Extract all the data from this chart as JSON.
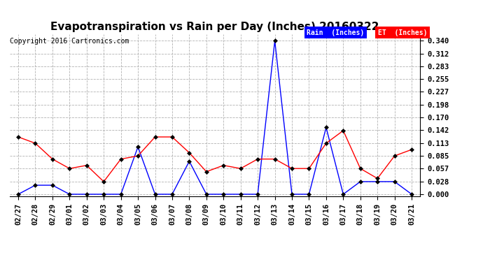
{
  "title": "Evapotranspiration vs Rain per Day (Inches) 20160322",
  "copyright": "Copyright 2016 Cartronics.com",
  "x_labels": [
    "02/27",
    "02/28",
    "02/29",
    "03/01",
    "03/02",
    "03/03",
    "03/04",
    "03/05",
    "03/06",
    "03/07",
    "03/08",
    "03/09",
    "03/10",
    "03/11",
    "03/12",
    "03/13",
    "03/14",
    "03/15",
    "03/16",
    "03/17",
    "03/18",
    "03/19",
    "03/20",
    "03/21"
  ],
  "rain_values": [
    0.0,
    0.02,
    0.02,
    0.0,
    0.0,
    0.0,
    0.0,
    0.105,
    0.0,
    0.0,
    0.073,
    0.0,
    0.0,
    0.0,
    0.0,
    0.34,
    0.0,
    0.0,
    0.148,
    0.0,
    0.028,
    0.028,
    0.028,
    0.0
  ],
  "et_values": [
    0.127,
    0.113,
    0.078,
    0.057,
    0.064,
    0.028,
    0.078,
    0.085,
    0.127,
    0.127,
    0.092,
    0.05,
    0.064,
    0.057,
    0.078,
    0.078,
    0.057,
    0.057,
    0.113,
    0.141,
    0.057,
    0.035,
    0.085,
    0.099
  ],
  "rain_color": "#0000FF",
  "et_color": "#FF0000",
  "marker_color": "#000000",
  "bg_color": "#FFFFFF",
  "grid_color": "#AAAAAA",
  "y_ticks": [
    0.0,
    0.028,
    0.057,
    0.085,
    0.113,
    0.142,
    0.17,
    0.198,
    0.227,
    0.255,
    0.283,
    0.312,
    0.34
  ],
  "ylim": [
    -0.005,
    0.355
  ],
  "legend_rain_bg": "#0000FF",
  "legend_et_bg": "#FF0000",
  "title_fontsize": 11,
  "tick_fontsize": 7.5,
  "copyright_fontsize": 7
}
